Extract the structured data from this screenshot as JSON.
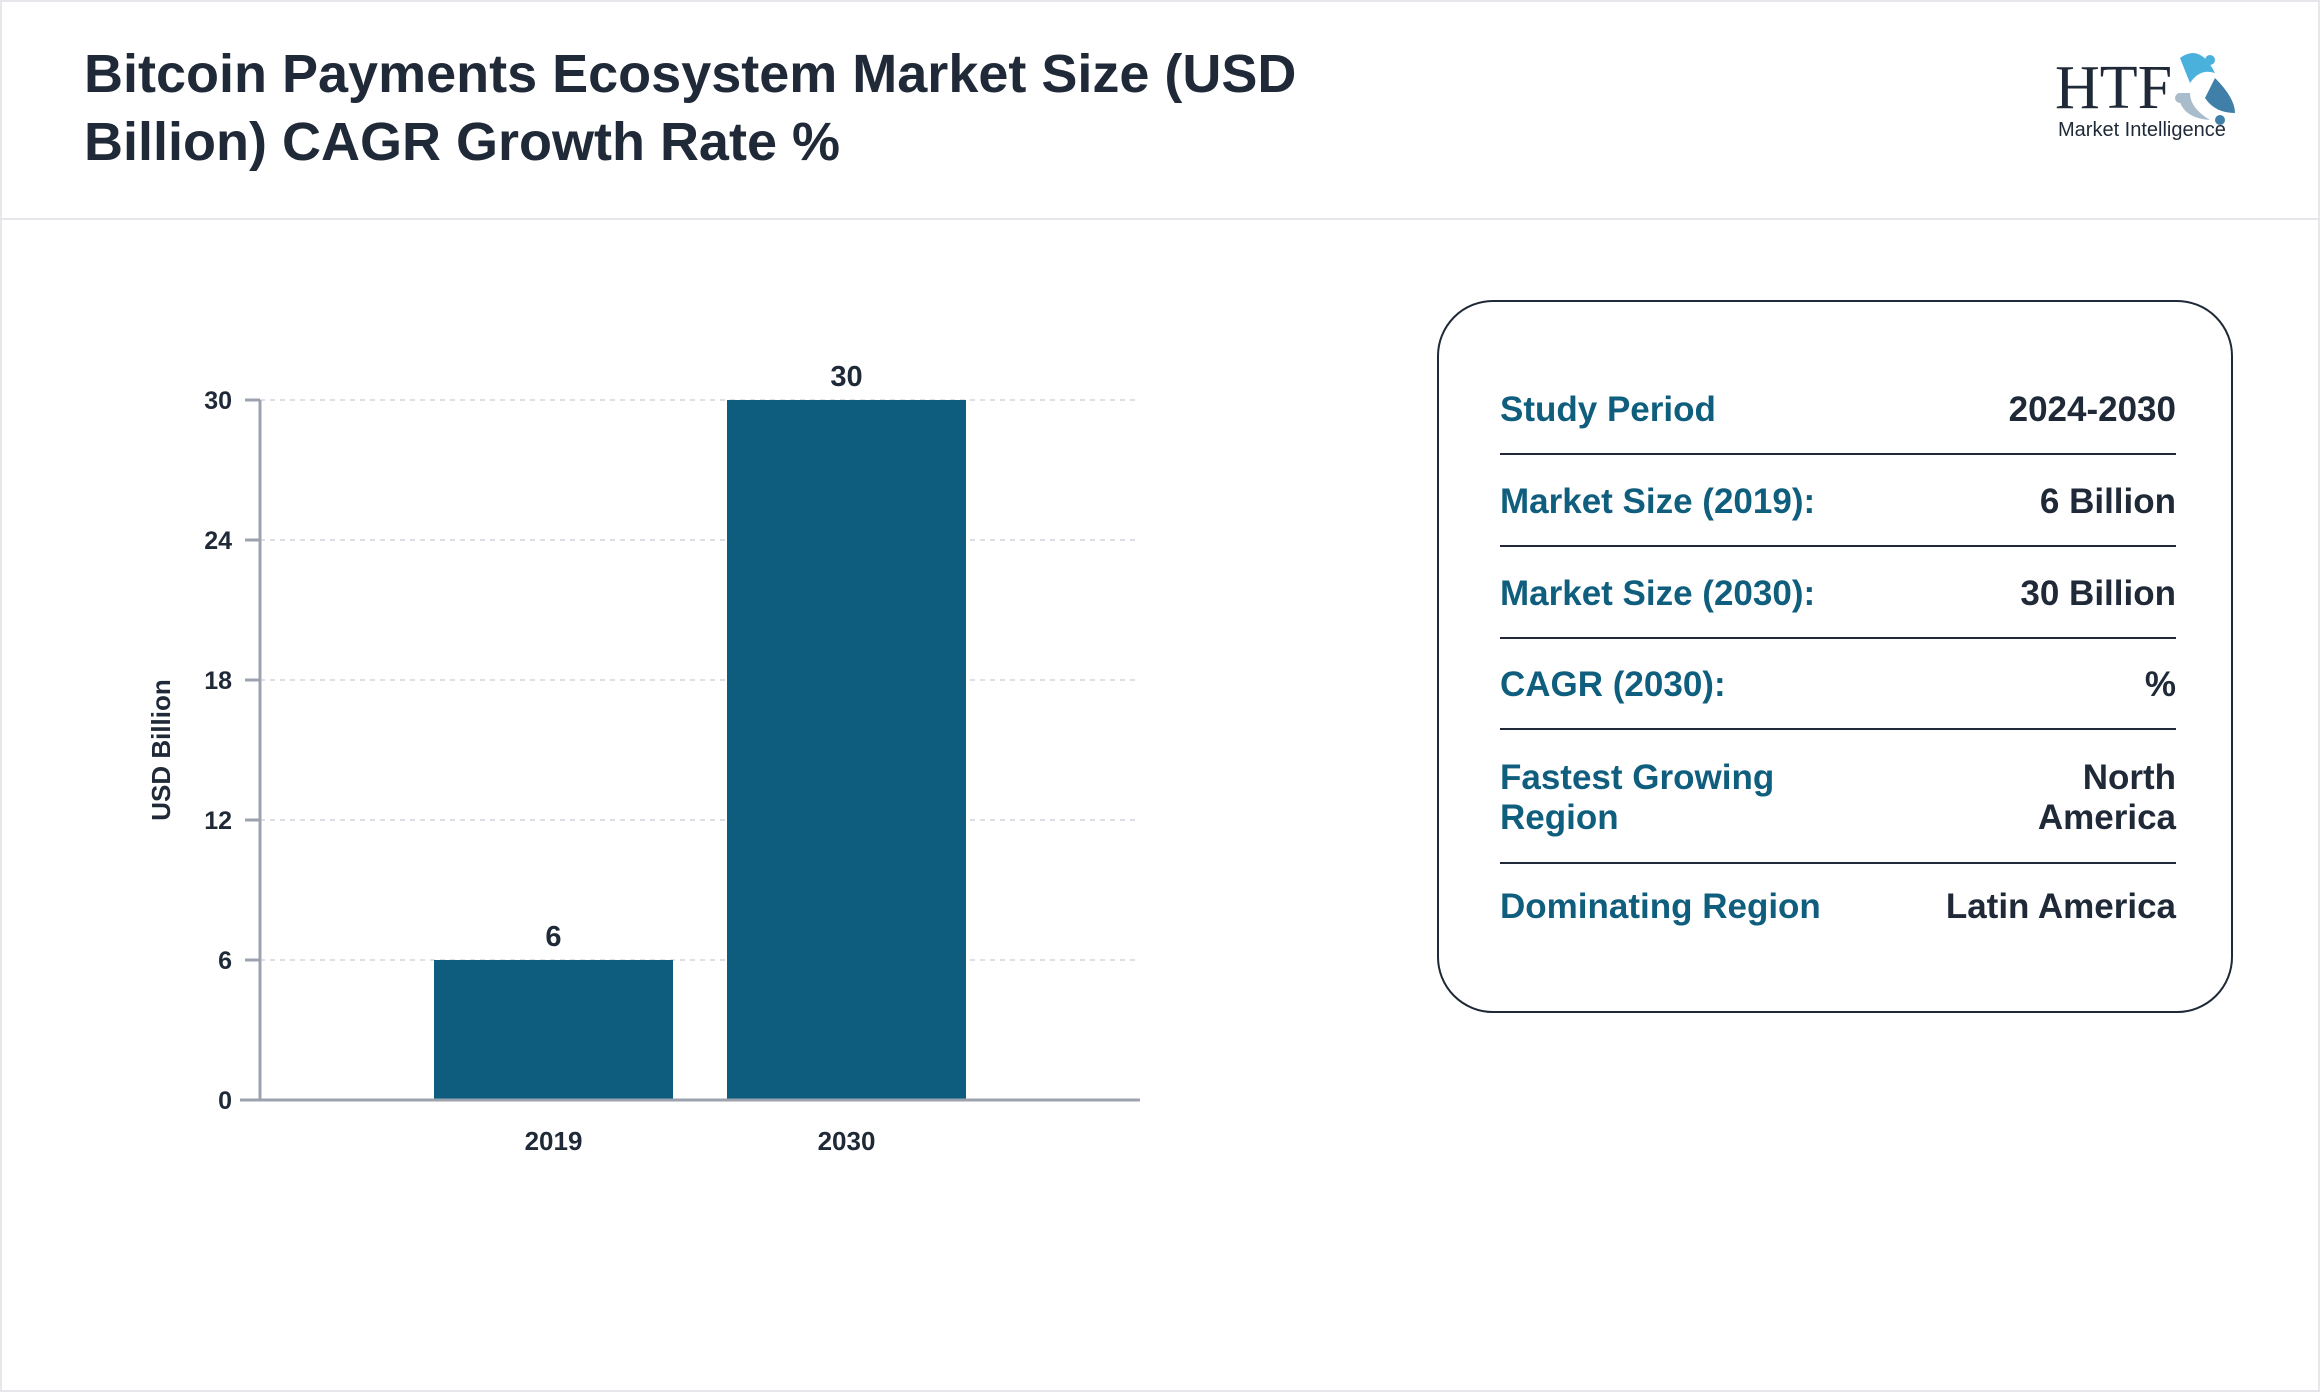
{
  "header": {
    "title": "Bitcoin Payments Ecosystem Market Size (USD Billion) CAGR Growth Rate %"
  },
  "logo": {
    "text": "HTF",
    "subtitle": "Market Intelligence"
  },
  "colors": {
    "bar": "#0e5c7e",
    "label": "#0f5e7e",
    "text": "#1f2937"
  },
  "chart_data": {
    "type": "bar",
    "categories": [
      "2019",
      "2030"
    ],
    "values": [
      6,
      30
    ],
    "data_labels": [
      "6",
      "30"
    ],
    "title": "",
    "xlabel": "",
    "ylabel": "USD Billion",
    "ylim": [
      0,
      30
    ],
    "yticks": [
      "0",
      "6",
      "12",
      "18",
      "24",
      "30"
    ],
    "grid": true
  },
  "summary": [
    {
      "label": "Study Period",
      "value": "2024-2030"
    },
    {
      "label": "Market Size (2019):",
      "value": "6 Billion"
    },
    {
      "label": "Market Size (2030):",
      "value": "30 Billion"
    },
    {
      "label": "CAGR (2030):",
      "value": "%"
    },
    {
      "label": "Fastest Growing Region",
      "value": "North America"
    },
    {
      "label": "Dominating Region",
      "value": "Latin America"
    }
  ]
}
